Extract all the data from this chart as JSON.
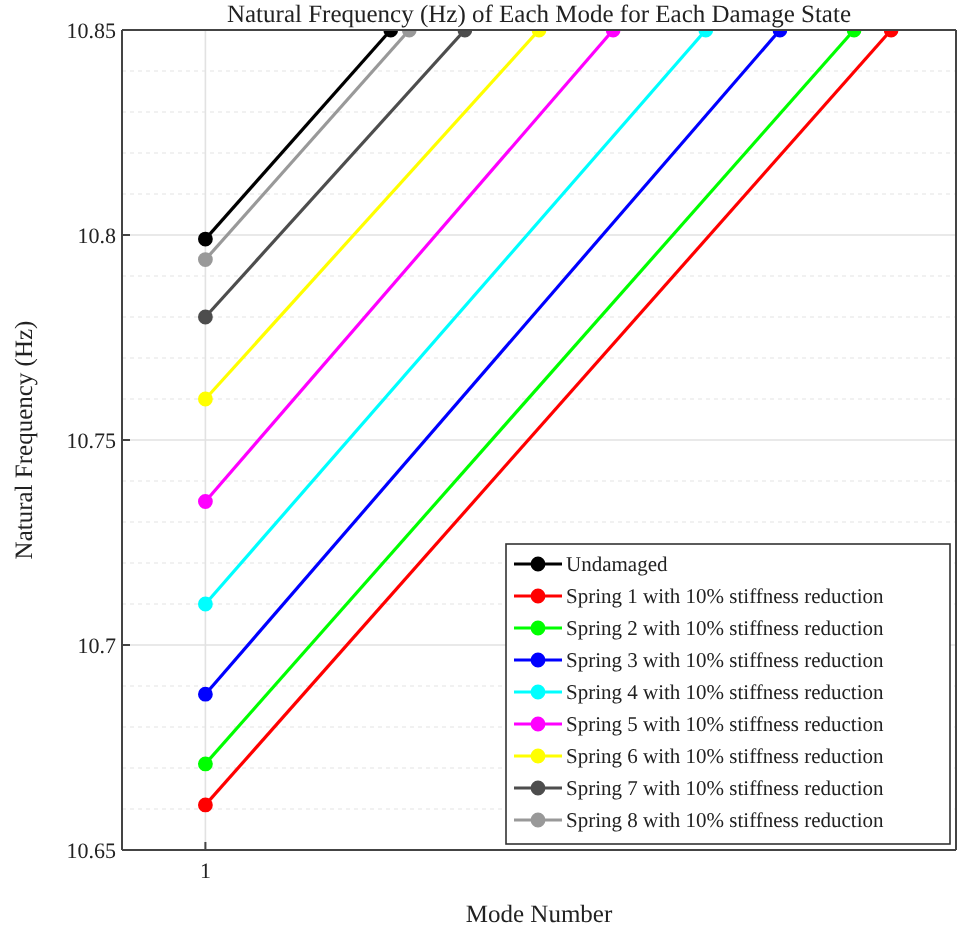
{
  "chart_data": {
    "type": "line",
    "title": "Natural Frequency (Hz) of Each Mode for Each Damage State",
    "xlabel": "Mode Number",
    "ylabel": "Natural Frequency (Hz)",
    "categories": [
      null,
      null,
      null,
      null,
      "1",
      null,
      null,
      null,
      null,
      null,
      null,
      null,
      null,
      null,
      null,
      null,
      null,
      null,
      null,
      null,
      null,
      null,
      null,
      null,
      null,
      null,
      null,
      null,
      null,
      null,
      null,
      null,
      null,
      null,
      null,
      null,
      null,
      null,
      null,
      null,
      null,
      null,
      null,
      null,
      null
    ],
    "ylim": [
      10.65,
      10.85
    ],
    "yticks": [
      10.65,
      10.7,
      10.75,
      10.8,
      10.85
    ],
    "grid": true,
    "legend": "bottom right",
    "marker": "circle",
    "line_style": "solid",
    "series": [
      {
        "name": "Undamaged",
        "color": "#000000",
        "values": [
          null,
          null,
          null,
          null,
          10.799,
          null,
          null,
          null,
          null,
          null,
          null,
          null,
          null,
          null,
          10.85,
          null,
          null,
          null,
          null,
          null,
          null,
          null,
          null,
          null,
          null,
          null,
          null,
          null,
          null,
          null,
          null,
          null,
          null,
          null,
          null,
          null,
          null,
          null,
          null,
          null,
          null,
          null,
          null,
          null,
          null
        ]
      },
      {
        "name": "Spring 1 with 10% stiffness reduction",
        "color": "#ff0000",
        "values": [
          null,
          null,
          null,
          null,
          10.661,
          null,
          null,
          null,
          null,
          null,
          null,
          null,
          null,
          null,
          null,
          null,
          null,
          null,
          null,
          null,
          null,
          null,
          null,
          null,
          null,
          null,
          null,
          null,
          null,
          null,
          null,
          null,
          null,
          null,
          null,
          null,
          null,
          null,
          null,
          null,
          null,
          10.85,
          null,
          null,
          null
        ]
      },
      {
        "name": "Spring 2 with 10% stiffness reduction",
        "color": "#00ff00",
        "values": [
          null,
          null,
          null,
          null,
          10.671,
          null,
          null,
          null,
          null,
          null,
          null,
          null,
          null,
          null,
          null,
          null,
          null,
          null,
          null,
          null,
          null,
          null,
          null,
          null,
          null,
          null,
          null,
          null,
          null,
          null,
          null,
          null,
          null,
          null,
          null,
          null,
          null,
          null,
          null,
          10.85,
          null,
          null,
          null,
          null,
          null
        ]
      },
      {
        "name": "Spring 3 with 10% stiffness reduction",
        "color": "#0000ff",
        "values": [
          null,
          null,
          null,
          null,
          10.688,
          null,
          null,
          null,
          null,
          null,
          null,
          null,
          null,
          null,
          null,
          null,
          null,
          null,
          null,
          null,
          null,
          null,
          null,
          null,
          null,
          null,
          null,
          null,
          null,
          null,
          null,
          null,
          null,
          null,
          null,
          10.85,
          null,
          null,
          null,
          null,
          null,
          null,
          null,
          null,
          null
        ]
      },
      {
        "name": "Spring 4 with 10% stiffness reduction",
        "color": "#00ffff",
        "values": [
          null,
          null,
          null,
          null,
          10.71,
          null,
          null,
          null,
          null,
          null,
          null,
          null,
          null,
          null,
          null,
          null,
          null,
          null,
          null,
          null,
          null,
          null,
          null,
          null,
          null,
          null,
          null,
          null,
          null,
          null,
          null,
          10.85,
          null,
          null,
          null,
          null,
          null,
          null,
          null,
          null,
          null,
          null,
          null,
          null,
          null
        ]
      },
      {
        "name": "Spring 5 with 10% stiffness reduction",
        "color": "#ff00ff",
        "values": [
          null,
          null,
          null,
          null,
          10.735,
          null,
          null,
          null,
          null,
          null,
          null,
          null,
          null,
          null,
          null,
          null,
          null,
          null,
          null,
          null,
          null,
          null,
          null,
          null,
          null,
          null,
          10.85,
          null,
          null,
          null,
          null,
          null,
          null,
          null,
          null,
          null,
          null,
          null,
          null,
          null,
          null,
          null,
          null,
          null,
          null
        ]
      },
      {
        "name": "Spring 6 with 10% stiffness reduction",
        "color": "#ffff00",
        "values": [
          null,
          null,
          null,
          null,
          10.76,
          null,
          null,
          null,
          null,
          null,
          null,
          null,
          null,
          null,
          null,
          null,
          null,
          null,
          null,
          null,
          null,
          null,
          10.85,
          null,
          null,
          null,
          null,
          null,
          null,
          null,
          null,
          null,
          null,
          null,
          null,
          null,
          null,
          null,
          null,
          null,
          null,
          null,
          null,
          null,
          null
        ]
      },
      {
        "name": "Spring 7 with 10% stiffness reduction",
        "color": "#4d4d4d",
        "values": [
          null,
          null,
          null,
          null,
          10.78,
          null,
          null,
          null,
          null,
          null,
          null,
          null,
          null,
          null,
          null,
          null,
          null,
          null,
          10.85,
          null,
          null,
          null,
          null,
          null,
          null,
          null,
          null,
          null,
          null,
          null,
          null,
          null,
          null,
          null,
          null,
          null,
          null,
          null,
          null,
          null,
          null,
          null,
          null,
          null,
          null
        ]
      },
      {
        "name": "Spring 8 with 10% stiffness reduction",
        "color": "#999999",
        "values": [
          null,
          null,
          null,
          null,
          10.794,
          null,
          null,
          null,
          null,
          null,
          null,
          null,
          null,
          null,
          null,
          10.85,
          null,
          null,
          null,
          null,
          null,
          null,
          null,
          null,
          null,
          null,
          null,
          null,
          null,
          null,
          null,
          null,
          null,
          null,
          null,
          null,
          null,
          null,
          null,
          null,
          null,
          null,
          null,
          null,
          null
        ]
      }
    ]
  }
}
